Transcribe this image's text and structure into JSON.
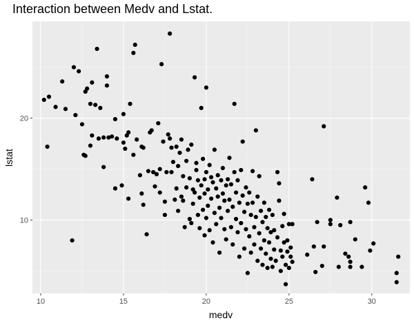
{
  "chart_data": {
    "type": "scatter",
    "title": "Interaction between Medv and Lstat.",
    "xlabel": "medv",
    "ylabel": "lstat",
    "xlim": [
      9.5,
      32.3
    ],
    "ylim": [
      2.8,
      29.5
    ],
    "x_ticks": [
      10,
      15,
      20,
      25,
      30
    ],
    "y_ticks": [
      10,
      20
    ],
    "grid": true,
    "background": "#ebebeb",
    "grid_major_color": "#ffffff",
    "point_color": "#000000",
    "points": [
      [
        10.2,
        21.8
      ],
      [
        10.4,
        17.2
      ],
      [
        10.5,
        22.1
      ],
      [
        10.9,
        21.1
      ],
      [
        11.3,
        23.6
      ],
      [
        11.5,
        20.9
      ],
      [
        11.9,
        8.0
      ],
      [
        12.0,
        25.0
      ],
      [
        12.1,
        20.3
      ],
      [
        12.3,
        24.6
      ],
      [
        12.5,
        19.4
      ],
      [
        12.6,
        16.4
      ],
      [
        12.7,
        16.3
      ],
      [
        12.7,
        22.6
      ],
      [
        12.8,
        22.9
      ],
      [
        13.0,
        17.3
      ],
      [
        13.0,
        21.4
      ],
      [
        13.1,
        18.3
      ],
      [
        13.1,
        23.5
      ],
      [
        13.3,
        21.3
      ],
      [
        13.4,
        26.8
      ],
      [
        13.5,
        18.0
      ],
      [
        13.6,
        21.0
      ],
      [
        13.8,
        15.2
      ],
      [
        13.8,
        18.1
      ],
      [
        14.0,
        24.1
      ],
      [
        14.0,
        23.2
      ],
      [
        14.1,
        18.1
      ],
      [
        14.3,
        18.2
      ],
      [
        14.5,
        13.1
      ],
      [
        14.5,
        19.9
      ],
      [
        14.6,
        18.0
      ],
      [
        14.9,
        13.4
      ],
      [
        15.0,
        17.6
      ],
      [
        15.0,
        20.4
      ],
      [
        15.1,
        17.0
      ],
      [
        15.2,
        18.3
      ],
      [
        15.3,
        12.1
      ],
      [
        15.3,
        18.6
      ],
      [
        15.4,
        21.4
      ],
      [
        15.6,
        16.4
      ],
      [
        15.6,
        26.4
      ],
      [
        15.7,
        27.2
      ],
      [
        15.8,
        17.9
      ],
      [
        16.0,
        14.4
      ],
      [
        16.1,
        12.6
      ],
      [
        16.1,
        17.2
      ],
      [
        16.2,
        11.5
      ],
      [
        16.2,
        17.1
      ],
      [
        16.4,
        8.6
      ],
      [
        16.5,
        14.8
      ],
      [
        16.6,
        18.6
      ],
      [
        16.7,
        18.8
      ],
      [
        16.8,
        14.7
      ],
      [
        16.9,
        13.3
      ],
      [
        17.0,
        14.5
      ],
      [
        17.1,
        19.5
      ],
      [
        17.2,
        15.0
      ],
      [
        17.2,
        12.7
      ],
      [
        17.4,
        17.7
      ],
      [
        17.3,
        25.3
      ],
      [
        17.5,
        10.5
      ],
      [
        17.5,
        11.8
      ],
      [
        17.6,
        14.7
      ],
      [
        17.7,
        18.4
      ],
      [
        17.8,
        28.3
      ],
      [
        17.8,
        18.0
      ],
      [
        17.9,
        17.1
      ],
      [
        17.9,
        14.7
      ],
      [
        18.0,
        15.7
      ],
      [
        18.1,
        12.0
      ],
      [
        18.2,
        13.1
      ],
      [
        18.2,
        17.2
      ],
      [
        18.3,
        15.3
      ],
      [
        18.3,
        10.9
      ],
      [
        18.4,
        16.6
      ],
      [
        18.5,
        17.9
      ],
      [
        18.5,
        12.3
      ],
      [
        18.6,
        14.3
      ],
      [
        18.7,
        9.3
      ],
      [
        18.6,
        11.9
      ],
      [
        18.8,
        13.2
      ],
      [
        18.8,
        15.8
      ],
      [
        18.9,
        16.9
      ],
      [
        19.0,
        14.1
      ],
      [
        19.0,
        10.1
      ],
      [
        19.1,
        17.4
      ],
      [
        19.1,
        9.7
      ],
      [
        19.2,
        13.0
      ],
      [
        19.2,
        11.6
      ],
      [
        19.3,
        12.7
      ],
      [
        19.3,
        24.0
      ],
      [
        19.4,
        15.6
      ],
      [
        19.4,
        14.9
      ],
      [
        19.5,
        13.9
      ],
      [
        19.5,
        10.5
      ],
      [
        19.6,
        12.2
      ],
      [
        19.6,
        9.2
      ],
      [
        19.7,
        13.4
      ],
      [
        19.7,
        21.0
      ],
      [
        19.8,
        16.0
      ],
      [
        19.8,
        11.0
      ],
      [
        19.9,
        14.0
      ],
      [
        19.9,
        12.6
      ],
      [
        19.9,
        8.5
      ],
      [
        20.0,
        14.7
      ],
      [
        20.0,
        10.2
      ],
      [
        20.0,
        23.0
      ],
      [
        20.1,
        13.0
      ],
      [
        20.1,
        11.4
      ],
      [
        20.2,
        15.4
      ],
      [
        20.2,
        9.0
      ],
      [
        20.3,
        14.2
      ],
      [
        20.3,
        12.1
      ],
      [
        20.4,
        7.8
      ],
      [
        20.4,
        13.7
      ],
      [
        20.5,
        10.7
      ],
      [
        20.5,
        16.9
      ],
      [
        20.6,
        13.1
      ],
      [
        20.6,
        9.6
      ],
      [
        20.7,
        12.3
      ],
      [
        20.7,
        14.4
      ],
      [
        20.8,
        11.2
      ],
      [
        20.8,
        6.8
      ],
      [
        20.9,
        13.9
      ],
      [
        20.9,
        10.2
      ],
      [
        21.0,
        12.6
      ],
      [
        21.0,
        15.1
      ],
      [
        21.1,
        9.1
      ],
      [
        21.1,
        11.9
      ],
      [
        21.2,
        13.4
      ],
      [
        21.2,
        8.1
      ],
      [
        21.3,
        14.0
      ],
      [
        21.3,
        10.9
      ],
      [
        21.4,
        12.0
      ],
      [
        21.4,
        16.1
      ],
      [
        21.5,
        9.3
      ],
      [
        21.5,
        13.5
      ],
      [
        21.6,
        11.3
      ],
      [
        21.6,
        7.6
      ],
      [
        21.7,
        21.4
      ],
      [
        21.7,
        14.7
      ],
      [
        21.8,
        12.7
      ],
      [
        21.8,
        10.1
      ],
      [
        21.9,
        8.8
      ],
      [
        21.9,
        13.9
      ],
      [
        22.0,
        11.7
      ],
      [
        22.0,
        6.4
      ],
      [
        22.1,
        14.9
      ],
      [
        22.1,
        9.7
      ],
      [
        22.2,
        12.4
      ],
      [
        22.2,
        17.7
      ],
      [
        22.3,
        10.8
      ],
      [
        22.3,
        7.2
      ],
      [
        22.4,
        13.2
      ],
      [
        22.4,
        9.1
      ],
      [
        22.5,
        11.6
      ],
      [
        22.5,
        4.8
      ],
      [
        22.6,
        12.7
      ],
      [
        22.6,
        8.4
      ],
      [
        22.7,
        10.5
      ],
      [
        22.7,
        6.8
      ],
      [
        22.8,
        14.8
      ],
      [
        22.8,
        11.7
      ],
      [
        22.9,
        7.6
      ],
      [
        22.9,
        9.3
      ],
      [
        23.0,
        18.8
      ],
      [
        23.0,
        10.3
      ],
      [
        23.1,
        12.3
      ],
      [
        23.1,
        6.0
      ],
      [
        23.2,
        8.7
      ],
      [
        23.2,
        14.3
      ],
      [
        23.3,
        10.9
      ],
      [
        23.3,
        7.2
      ],
      [
        23.4,
        9.8
      ],
      [
        23.4,
        5.6
      ],
      [
        23.5,
        11.7
      ],
      [
        23.5,
        8.0
      ],
      [
        23.6,
        6.7
      ],
      [
        23.6,
        10.3
      ],
      [
        23.7,
        9.2
      ],
      [
        23.7,
        5.3
      ],
      [
        23.8,
        7.8
      ],
      [
        23.8,
        11.0
      ],
      [
        23.9,
        6.2
      ],
      [
        23.9,
        8.8
      ],
      [
        24.0,
        10.5
      ],
      [
        24.0,
        5.4
      ],
      [
        24.1,
        7.1
      ],
      [
        24.1,
        9.0
      ],
      [
        24.2,
        6.0
      ],
      [
        24.3,
        8.3
      ],
      [
        24.3,
        14.7
      ],
      [
        24.4,
        11.9
      ],
      [
        24.4,
        13.6
      ],
      [
        24.5,
        7.0
      ],
      [
        24.5,
        5.0
      ],
      [
        24.6,
        9.4
      ],
      [
        24.6,
        6.4
      ],
      [
        24.7,
        7.8
      ],
      [
        24.7,
        10.6
      ],
      [
        24.8,
        5.6
      ],
      [
        24.8,
        3.7
      ],
      [
        24.9,
        8.0
      ],
      [
        24.9,
        6.9
      ],
      [
        25.0,
        9.6
      ],
      [
        25.0,
        5.3
      ],
      [
        25.1,
        7.3
      ],
      [
        25.1,
        6.4
      ],
      [
        25.2,
        9.6
      ],
      [
        25.2,
        5.9
      ],
      [
        26.1,
        6.6
      ],
      [
        26.4,
        14.0
      ],
      [
        26.5,
        7.4
      ],
      [
        26.6,
        4.9
      ],
      [
        26.7,
        9.8
      ],
      [
        27.0,
        5.5
      ],
      [
        27.1,
        7.4
      ],
      [
        27.1,
        19.2
      ],
      [
        27.5,
        9.6
      ],
      [
        27.5,
        10.0
      ],
      [
        27.9,
        12.2
      ],
      [
        28.0,
        5.4
      ],
      [
        28.1,
        9.5
      ],
      [
        28.4,
        6.7
      ],
      [
        28.6,
        6.4
      ],
      [
        28.7,
        5.9
      ],
      [
        28.7,
        5.4
      ],
      [
        28.7,
        9.8
      ],
      [
        29.0,
        8.1
      ],
      [
        29.4,
        5.4
      ],
      [
        29.6,
        13.2
      ],
      [
        29.8,
        11.7
      ],
      [
        29.9,
        7.0
      ],
      [
        30.1,
        7.7
      ],
      [
        31.5,
        4.8
      ],
      [
        31.5,
        3.9
      ],
      [
        31.6,
        6.4
      ]
    ]
  }
}
